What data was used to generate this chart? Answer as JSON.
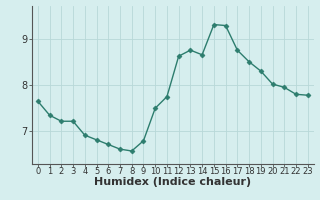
{
  "x": [
    0,
    1,
    2,
    3,
    4,
    5,
    6,
    7,
    8,
    9,
    10,
    11,
    12,
    13,
    14,
    15,
    16,
    17,
    18,
    19,
    20,
    21,
    22,
    23
  ],
  "y": [
    7.65,
    7.35,
    7.22,
    7.22,
    6.92,
    6.82,
    6.72,
    6.62,
    6.58,
    6.8,
    7.5,
    7.75,
    8.62,
    8.75,
    8.65,
    9.3,
    9.28,
    8.75,
    8.5,
    8.3,
    8.02,
    7.95,
    7.8,
    7.78
  ],
  "line_color": "#2d7d6e",
  "marker": "D",
  "marker_size": 2.5,
  "background_color": "#d6eeee",
  "grid_color": "#b8d8d8",
  "xlabel": "Humidex (Indice chaleur)",
  "ylim": [
    6.3,
    9.7
  ],
  "yticks": [
    7,
    8,
    9
  ],
  "xlim": [
    -0.5,
    23.5
  ],
  "xticks": [
    0,
    1,
    2,
    3,
    4,
    5,
    6,
    7,
    8,
    9,
    10,
    11,
    12,
    13,
    14,
    15,
    16,
    17,
    18,
    19,
    20,
    21,
    22,
    23
  ],
  "xtick_labels": [
    "0",
    "1",
    "2",
    "3",
    "4",
    "5",
    "6",
    "7",
    "8",
    "9",
    "10",
    "11",
    "12",
    "13",
    "14",
    "15",
    "16",
    "17",
    "18",
    "19",
    "20",
    "21",
    "22",
    "23"
  ],
  "tick_color": "#333333",
  "xlabel_fontsize": 8,
  "tick_fontsize": 6,
  "linewidth": 1.0,
  "spine_color": "#555555"
}
